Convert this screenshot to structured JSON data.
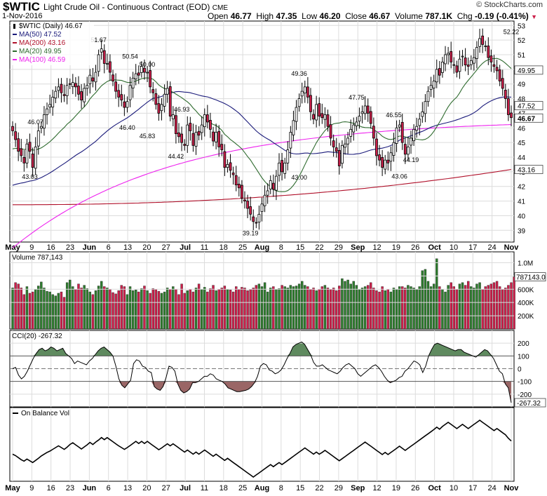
{
  "header": {
    "ticker": "$WTIC",
    "description": "Light Crude Oil - Continuous Contract (EOD)",
    "exchange": "CME",
    "date": "1-Nov-2016",
    "watermark": "© StockCharts.com",
    "open_label": "Open",
    "open": "46.77",
    "high_label": "High",
    "high": "47.35",
    "low_label": "Low",
    "low": "46.20",
    "close_label": "Close",
    "close": "46.67",
    "volume_label": "Volume",
    "volume": "787.1K",
    "chg_label": "Chg",
    "chg": "-0.19 (-0.41%)",
    "chg_icon": "down-triangle-icon"
  },
  "colors": {
    "up": "#2e7d2e",
    "down": "#cc1f4a",
    "ma50": "#1a1a7a",
    "ma200": "#b0102a",
    "ma20": "#2f6b2f",
    "ma100": "#ee22ee",
    "grid": "#dcdcdc",
    "cci_pos": "#5f8a5f",
    "cci_neg": "#9a6666"
  },
  "chart_data": [
    {
      "type": "candlestick",
      "legend": [
        {
          "name": "$WTIC (Daily) 46.67",
          "marker": "candle"
        },
        {
          "name": "MA(50) 47.52",
          "color": "#1a1a7a"
        },
        {
          "name": "MA(200) 43.16",
          "color": "#b0102a"
        },
        {
          "name": "MA(20) 49.95",
          "color": "#2f6b2f"
        },
        {
          "name": "MA(100) 46.59",
          "color": "#ee22ee"
        }
      ],
      "ylim": [
        38.2,
        53.3
      ],
      "yticks": [
        39,
        40,
        41,
        42,
        43,
        44,
        45,
        46,
        47,
        48,
        49,
        50,
        51,
        52,
        53
      ],
      "xticks": [
        "May",
        "9",
        "16",
        "23",
        "Jun",
        "6",
        "13",
        "20",
        "27",
        "Jul",
        "11",
        "18",
        "25",
        "Aug",
        "8",
        "15",
        "22",
        "29",
        "Sep",
        "12",
        "19",
        "26",
        "Oct",
        "10",
        "17",
        "24",
        "Nov"
      ],
      "closes": [
        45.8,
        45.2,
        44.4,
        44.1,
        43.6,
        44.9,
        44.4,
        43.3,
        44.7,
        45.8,
        46.1,
        46.9,
        47.3,
        47.6,
        48.1,
        48.5,
        48.8,
        48.4,
        48.2,
        48.9,
        49.0,
        49.1,
        48.8,
        48.3,
        47.9,
        48.7,
        48.9,
        49.6,
        49.2,
        49.8,
        51.0,
        51.4,
        50.4,
        50.4,
        49.8,
        49.2,
        48.5,
        48.1,
        47.9,
        47.4,
        47.8,
        48.9,
        49.4,
        49.7,
        49.6,
        50.2,
        49.8,
        49.8,
        48.8,
        48.4,
        47.6,
        47.0,
        47.6,
        48.3,
        48.7,
        46.8,
        46.9,
        45.6,
        45.4,
        45.0,
        44.8,
        46.2,
        45.8,
        44.8,
        45.7,
        45.5,
        46.2,
        46.9,
        46.4,
        45.9,
        45.1,
        45.7,
        44.7,
        44.5,
        43.3,
        43.5,
        43.1,
        42.8,
        42.1,
        41.9,
        41.2,
        41.0,
        40.5,
        40.1,
        39.6,
        39.5,
        40.1,
        40.8,
        41.4,
        41.7,
        42.4,
        41.8,
        42.7,
        43.6,
        43.0,
        43.6,
        44.5,
        45.7,
        46.5,
        47.4,
        48.0,
        48.5,
        48.8,
        48.1,
        47.1,
        46.6,
        47.6,
        46.8,
        46.7,
        46.9,
        46.1,
        45.3,
        44.7,
        44.4,
        43.4,
        44.8,
        44.9,
        45.3,
        45.9,
        46.2,
        46.4,
        46.8,
        47.1,
        47.5,
        47.0,
        46.3,
        45.3,
        44.1,
        43.8,
        43.3,
        43.8,
        43.6,
        44.3,
        45.0,
        46.0,
        46.2,
        45.0,
        44.2,
        44.7,
        45.3,
        45.9,
        46.1,
        46.6,
        47.1,
        47.8,
        48.5,
        48.9,
        49.2,
        50.0,
        49.6,
        50.5,
        51.0,
        51.1,
        50.5,
        50.3,
        49.8,
        50.7,
        50.9,
        50.3,
        50.2,
        50.6,
        50.8,
        51.5,
        52.1,
        51.7,
        51.6,
        50.8,
        50.5,
        50.2,
        49.9,
        49.2,
        48.7,
        48.0,
        46.9,
        46.7
      ],
      "labels": [
        {
          "text": "46.07",
          "value": 46.07
        },
        {
          "text": "43.03",
          "value": 43.03
        },
        {
          "text": "51.67",
          "value": 51.67
        },
        {
          "text": "50.54",
          "value": 50.54
        },
        {
          "text": "50.00",
          "value": 50.0
        },
        {
          "text": "46.40",
          "value": 46.4
        },
        {
          "text": "45.83",
          "value": 45.83
        },
        {
          "text": "46.93",
          "value": 46.93
        },
        {
          "text": "44.42",
          "value": 44.42
        },
        {
          "text": "39.19",
          "value": 39.19
        },
        {
          "text": "49.36",
          "value": 49.36
        },
        {
          "text": "47.75",
          "value": 47.75
        },
        {
          "text": "43.00",
          "value": 43.0
        },
        {
          "text": "46.55",
          "value": 46.55
        },
        {
          "text": "43.06",
          "value": 43.06
        },
        {
          "text": "44.19",
          "value": 44.19
        },
        {
          "text": "52.22",
          "value": 52.22
        }
      ],
      "ma_end_labels": [
        {
          "text": "49.95",
          "value": 49.95
        },
        {
          "text": "47.52",
          "value": 47.52
        },
        {
          "text": "46.67",
          "value": 46.67
        },
        {
          "text": "43.16",
          "value": 43.16
        }
      ],
      "grid": true
    },
    {
      "type": "bar",
      "title": "Volume 787,143",
      "yticks_text": [
        "1.0M",
        "800K",
        "600K",
        "400K",
        "200K"
      ],
      "yticks": [
        1000000,
        800000,
        600000,
        400000,
        200000
      ],
      "ylim": [
        0,
        1100000
      ],
      "last_label": "787143.0",
      "values_k": [
        620,
        700,
        680,
        620,
        520,
        640,
        540,
        560,
        600,
        650,
        710,
        620,
        570,
        560,
        520,
        500,
        540,
        560,
        480,
        700,
        740,
        640,
        600,
        680,
        620,
        660,
        610,
        560,
        520,
        580,
        650,
        720,
        640,
        620,
        600,
        550,
        530,
        580,
        660,
        640,
        520,
        640,
        580,
        590,
        560,
        610,
        650,
        580,
        540,
        610,
        600,
        570,
        540,
        560,
        620,
        600,
        640,
        600,
        520,
        680,
        540,
        580,
        600,
        560,
        620,
        680,
        600,
        630,
        560,
        610,
        660,
        580,
        600,
        620,
        650,
        600,
        590,
        560,
        640,
        600,
        630,
        620,
        580,
        600,
        620,
        660,
        680,
        640,
        700,
        560,
        620,
        640,
        600,
        610,
        660,
        640,
        620,
        660,
        640,
        650,
        680,
        720,
        660,
        640,
        600,
        620,
        580,
        600,
        640,
        660,
        620,
        600,
        620,
        580,
        650,
        760,
        720,
        740,
        680,
        720,
        660,
        600,
        620,
        640,
        660,
        700,
        620,
        580,
        560,
        640,
        580,
        600,
        560,
        620,
        600,
        640,
        640,
        620,
        660,
        640,
        620,
        600,
        640,
        880,
        900,
        720,
        640,
        680,
        1060,
        640,
        600,
        560,
        660,
        700,
        640,
        600,
        680,
        700,
        660,
        720,
        640,
        620,
        680,
        700,
        600,
        640,
        660,
        680,
        700,
        720,
        640,
        600,
        620,
        660,
        700,
        787
      ]
    },
    {
      "type": "line",
      "title": "CCI(20) -267.32",
      "ylim": [
        -300,
        300
      ],
      "yticks": [
        200,
        100,
        0,
        -100,
        -200
      ],
      "last_label": "-267.32",
      "values": [
        0,
        10,
        -50,
        -80,
        -60,
        -20,
        30,
        80,
        120,
        150,
        160,
        140,
        150,
        170,
        160,
        140,
        150,
        160,
        120,
        100,
        80,
        40,
        60,
        50,
        40,
        30,
        60,
        80,
        110,
        140,
        160,
        170,
        150,
        130,
        100,
        20,
        -80,
        -130,
        -150,
        -120,
        -90,
        40,
        70,
        60,
        20,
        10,
        -20,
        -30,
        -140,
        -160,
        -170,
        -140,
        -70,
        20,
        10,
        -20,
        -120,
        -170,
        -190,
        -180,
        -160,
        -110,
        -110,
        -100,
        -80,
        -60,
        -60,
        -40,
        -50,
        -80,
        -90,
        -100,
        -120,
        -150,
        -160,
        -170,
        -180,
        -180,
        -175,
        -170,
        -160,
        -140,
        -110,
        -60,
        20,
        40,
        30,
        -10,
        -20,
        -40,
        -30,
        -10,
        30,
        80,
        120,
        170,
        190,
        200,
        210,
        190,
        150,
        110,
        50,
        20,
        20,
        30,
        10,
        -10,
        -20,
        -30,
        -40,
        -20,
        10,
        30,
        40,
        20,
        0,
        -40,
        -60,
        -40,
        -20,
        0,
        20,
        30,
        10,
        -20,
        -60,
        -90,
        -110,
        -100,
        -90,
        -70,
        -60,
        -20,
        0,
        30,
        60,
        50,
        30,
        -30,
        20,
        100,
        150,
        190,
        200,
        190,
        180,
        170,
        160,
        150,
        140,
        150,
        150,
        130,
        120,
        110,
        100,
        90,
        110,
        130,
        150,
        140,
        110,
        80,
        30,
        -20,
        -40,
        -120,
        -150,
        -267
      ]
    },
    {
      "type": "line",
      "title": "On Balance Vol",
      "values": [
        0,
        -0.4,
        -1.0,
        -1.6,
        -2.0,
        -1.4,
        -1.9,
        -2.4,
        -1.8,
        -1.2,
        -0.5,
        0.0,
        0.5,
        0.9,
        1.4,
        1.9,
        2.4,
        1.9,
        1.4,
        2.0,
        2.8,
        3.3,
        2.7,
        2.1,
        1.5,
        2.1,
        2.7,
        3.4,
        2.8,
        3.5,
        4.1,
        4.8,
        4.2,
        4.8,
        4.2,
        3.6,
        3.0,
        2.4,
        1.9,
        1.4,
        1.9,
        2.5,
        3.1,
        3.7,
        3.1,
        3.7,
        3.1,
        3.7,
        3.1,
        2.5,
        1.9,
        1.3,
        1.8,
        2.4,
        3.0,
        2.4,
        3.0,
        2.4,
        1.8,
        1.2,
        0.6,
        1.2,
        0.6,
        0.0,
        0.6,
        0.0,
        0.6,
        1.2,
        0.6,
        0.0,
        -0.6,
        0.0,
        -0.6,
        -1.2,
        -1.8,
        -1.2,
        -1.8,
        -2.4,
        -3.0,
        -3.6,
        -4.2,
        -4.8,
        -5.4,
        -6.0,
        -6.6,
        -6.0,
        -5.4,
        -4.8,
        -4.2,
        -3.6,
        -3.0,
        -3.6,
        -3.0,
        -2.4,
        -3.0,
        -2.4,
        -1.8,
        -1.2,
        -0.6,
        0.0,
        0.6,
        1.2,
        1.8,
        1.2,
        0.6,
        0.0,
        0.6,
        0.0,
        0.5,
        1.1,
        0.5,
        -0.1,
        -0.7,
        -1.3,
        -1.9,
        -1.3,
        -0.7,
        -0.1,
        0.5,
        1.1,
        1.7,
        2.3,
        2.9,
        3.5,
        2.9,
        2.3,
        1.7,
        1.1,
        0.5,
        -0.1,
        0.5,
        -0.1,
        0.5,
        1.1,
        1.7,
        2.3,
        1.7,
        1.1,
        1.7,
        2.3,
        2.9,
        3.5,
        4.1,
        4.7,
        5.3,
        5.9,
        6.5,
        7.1,
        7.8,
        7.2,
        8.0,
        8.6,
        9.2,
        8.6,
        8.0,
        7.4,
        8.0,
        8.6,
        8.0,
        7.4,
        8.0,
        8.6,
        9.2,
        9.8,
        9.2,
        8.6,
        8.0,
        7.4,
        6.8,
        7.4,
        6.8,
        6.2,
        5.6,
        4.6,
        3.8
      ]
    }
  ],
  "x_axis_labels": [
    "May",
    "9",
    "16",
    "23",
    "Jun",
    "6",
    "13",
    "20",
    "27",
    "Jul",
    "11",
    "18",
    "25",
    "Aug",
    "8",
    "15",
    "22",
    "29",
    "Sep",
    "12",
    "19",
    "26",
    "Oct",
    "10",
    "17",
    "24",
    "Nov"
  ]
}
